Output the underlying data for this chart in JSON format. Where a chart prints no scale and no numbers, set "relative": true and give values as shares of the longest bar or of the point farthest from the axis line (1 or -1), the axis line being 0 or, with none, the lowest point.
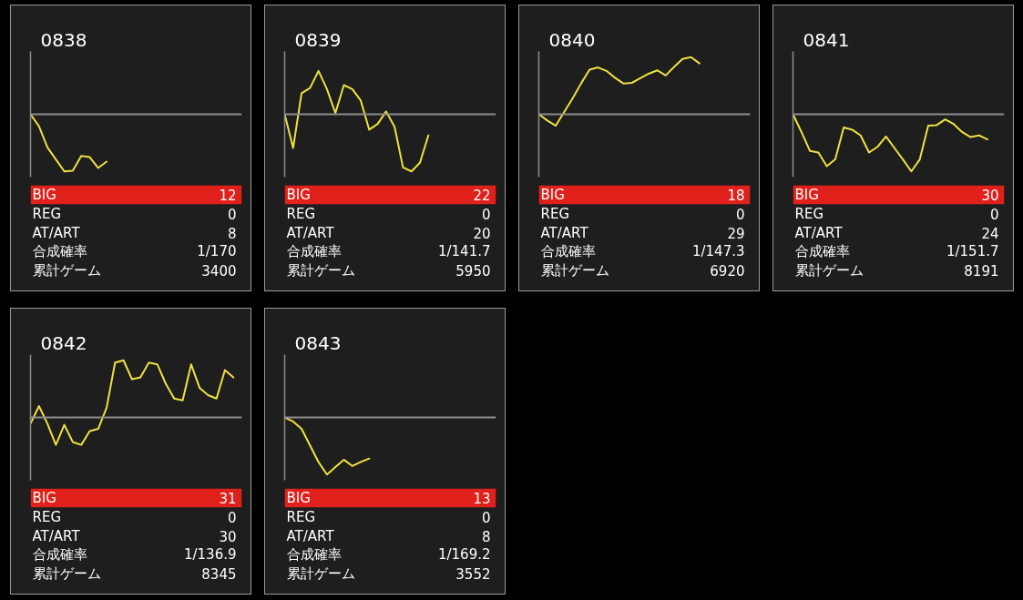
{
  "chart_data": [
    {
      "type": "line",
      "title": "0838",
      "relative": true,
      "color": "#f0e040",
      "categories": [
        null,
        null,
        null,
        null,
        null,
        null,
        null,
        null,
        null,
        null,
        null,
        null,
        null,
        null,
        null,
        null,
        null,
        null,
        null,
        null,
        null,
        null,
        null,
        null,
        null,
        null
      ],
      "values": [
        0,
        -0.21,
        -0.58,
        -0.79,
        -1,
        -0.99,
        -0.73,
        -0.75,
        -0.94,
        -0.83,
        null,
        null,
        null,
        null,
        null,
        null,
        null,
        null,
        null,
        null,
        null,
        null,
        null,
        null,
        null,
        null
      ],
      "annotations": [
        "BIG",
        "12",
        "REG",
        "0",
        "AT/ART",
        "8",
        "合成確率",
        "1/170",
        "累計ゲーム",
        "3400"
      ]
    },
    {
      "type": "line",
      "title": "0839",
      "relative": true,
      "color": "#f0e040",
      "categories": [
        null,
        null,
        null,
        null,
        null,
        null,
        null,
        null,
        null,
        null,
        null,
        null,
        null,
        null,
        null,
        null,
        null,
        null,
        null,
        null,
        null,
        null,
        null,
        null,
        null,
        null
      ],
      "values": [
        0,
        -0.59,
        0.37,
        0.46,
        0.76,
        0.44,
        0.02,
        0.51,
        0.44,
        0.24,
        -0.27,
        -0.17,
        0.05,
        -0.22,
        -0.93,
        -1,
        -0.85,
        -0.37,
        null,
        null,
        null,
        null,
        null,
        null,
        null,
        null
      ],
      "annotations": [
        "BIG",
        "22",
        "REG",
        "0",
        "AT/ART",
        "20",
        "合成確率",
        "1/141.7",
        "累計ゲーム",
        "5950"
      ]
    },
    {
      "type": "line",
      "title": "0840",
      "relative": true,
      "color": "#f0e040",
      "categories": [
        null,
        null,
        null,
        null,
        null,
        null,
        null,
        null,
        null,
        null,
        null,
        null,
        null,
        null,
        null,
        null,
        null,
        null,
        null,
        null,
        null,
        null,
        null,
        null,
        null,
        null
      ],
      "values": [
        0,
        -0.11,
        -0.2,
        0.04,
        0.28,
        0.54,
        0.78,
        0.82,
        0.76,
        0.64,
        0.54,
        0.55,
        0.63,
        0.71,
        0.77,
        0.68,
        0.83,
        0.97,
        1,
        0.89,
        null,
        null,
        null,
        null,
        null,
        null
      ],
      "annotations": [
        "BIG",
        "18",
        "REG",
        "0",
        "AT/ART",
        "29",
        "合成確率",
        "1/147.3",
        "累計ゲーム",
        "6920"
      ]
    },
    {
      "type": "line",
      "title": "0841",
      "relative": true,
      "color": "#f0e040",
      "categories": [
        null,
        null,
        null,
        null,
        null,
        null,
        null,
        null,
        null,
        null,
        null,
        null,
        null,
        null,
        null,
        null,
        null,
        null,
        null,
        null,
        null,
        null,
        null,
        null,
        null,
        null
      ],
      "values": [
        0,
        -0.31,
        -0.64,
        -0.67,
        -0.91,
        -0.79,
        -0.23,
        -0.27,
        -0.37,
        -0.67,
        -0.57,
        -0.39,
        -0.59,
        -0.79,
        -1,
        -0.79,
        -0.2,
        -0.19,
        -0.09,
        -0.17,
        -0.31,
        -0.4,
        -0.37,
        -0.44,
        null,
        null
      ],
      "annotations": [
        "BIG",
        "30",
        "REG",
        "0",
        "AT/ART",
        "24",
        "合成確率",
        "1/151.7",
        "累計ゲーム",
        "8191"
      ]
    },
    {
      "type": "line",
      "title": "0842",
      "relative": true,
      "color": "#f0e040",
      "categories": [
        null,
        null,
        null,
        null,
        null,
        null,
        null,
        null,
        null,
        null,
        null,
        null,
        null,
        null,
        null,
        null,
        null,
        null,
        null,
        null,
        null,
        null,
        null,
        null,
        null,
        null
      ],
      "values": [
        -0.11,
        0.2,
        -0.11,
        -0.48,
        -0.13,
        -0.43,
        -0.48,
        -0.24,
        -0.2,
        0.17,
        0.96,
        1,
        0.67,
        0.7,
        0.96,
        0.93,
        0.59,
        0.33,
        0.3,
        0.93,
        0.52,
        0.39,
        0.33,
        0.83,
        0.7,
        null
      ],
      "annotations": [
        "BIG",
        "31",
        "REG",
        "0",
        "AT/ART",
        "30",
        "合成確率",
        "1/136.9",
        "累計ゲーム",
        "8345"
      ]
    },
    {
      "type": "line",
      "title": "0843",
      "relative": true,
      "color": "#f0e040",
      "categories": [
        null,
        null,
        null,
        null,
        null,
        null,
        null,
        null,
        null,
        null,
        null,
        null,
        null,
        null,
        null,
        null,
        null,
        null,
        null,
        null,
        null,
        null,
        null,
        null,
        null,
        null
      ],
      "values": [
        0,
        -0.07,
        -0.2,
        -0.49,
        -0.78,
        -1,
        -0.87,
        -0.74,
        -0.85,
        -0.78,
        -0.72,
        null,
        null,
        null,
        null,
        null,
        null,
        null,
        null,
        null,
        null,
        null,
        null,
        null,
        null,
        null
      ],
      "annotations": [
        "BIG",
        "13",
        "REG",
        "0",
        "AT/ART",
        "8",
        "合成確率",
        "1/169.2",
        "累計ゲーム",
        "3552"
      ]
    }
  ]
}
